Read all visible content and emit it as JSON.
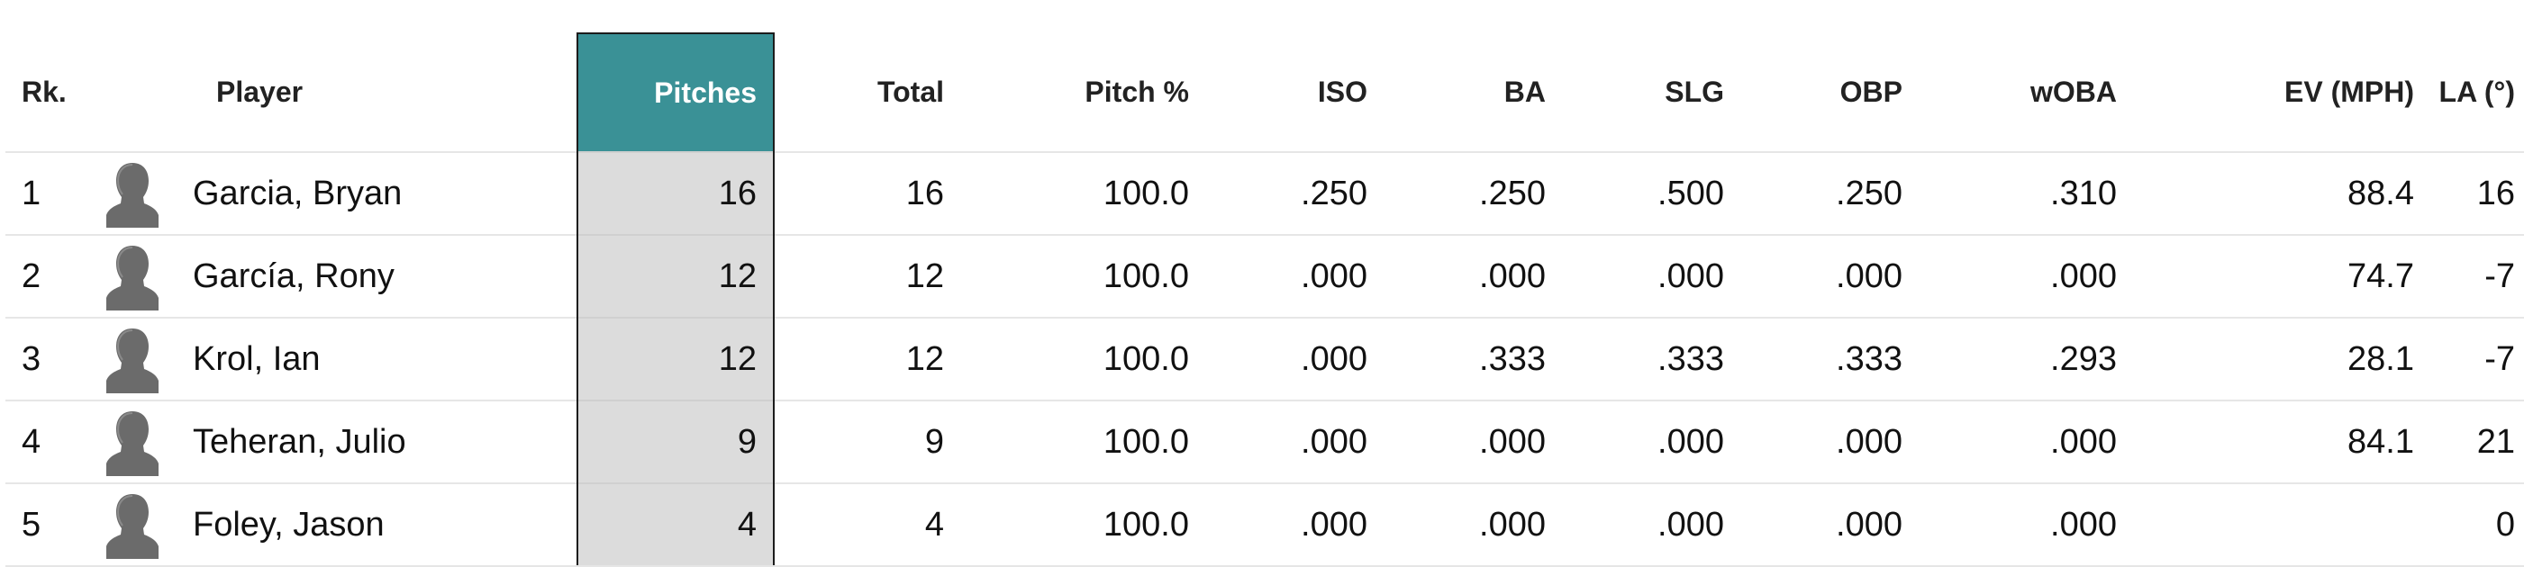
{
  "table": {
    "headers": {
      "rk": "Rk.",
      "player": "Player",
      "pitches": "Pitches",
      "total": "Total",
      "pitch_pct": "Pitch %",
      "iso": "ISO",
      "ba": "BA",
      "slg": "SLG",
      "obp": "OBP",
      "woba": "wOBA",
      "ev": "EV (MPH)",
      "la": "LA (°)"
    },
    "sorted_column": "Pitches",
    "accent_color": "#3a9196",
    "rows": [
      {
        "rk": "1",
        "player": "Garcia, Bryan",
        "pitches": "16",
        "total": "16",
        "pitch_pct": "100.0",
        "iso": ".250",
        "ba": ".250",
        "slg": ".500",
        "obp": ".250",
        "woba": ".310",
        "ev": "88.4",
        "la": "16"
      },
      {
        "rk": "2",
        "player": "García, Rony",
        "pitches": "12",
        "total": "12",
        "pitch_pct": "100.0",
        "iso": ".000",
        "ba": ".000",
        "slg": ".000",
        "obp": ".000",
        "woba": ".000",
        "ev": "74.7",
        "la": "-7"
      },
      {
        "rk": "3",
        "player": "Krol, Ian",
        "pitches": "12",
        "total": "12",
        "pitch_pct": "100.0",
        "iso": ".000",
        "ba": ".333",
        "slg": ".333",
        "obp": ".333",
        "woba": ".293",
        "ev": "28.1",
        "la": "-7"
      },
      {
        "rk": "4",
        "player": "Teheran, Julio",
        "pitches": "9",
        "total": "9",
        "pitch_pct": "100.0",
        "iso": ".000",
        "ba": ".000",
        "slg": ".000",
        "obp": ".000",
        "woba": ".000",
        "ev": "84.1",
        "la": "21"
      },
      {
        "rk": "5",
        "player": "Foley, Jason",
        "pitches": "4",
        "total": "4",
        "pitch_pct": "100.0",
        "iso": ".000",
        "ba": ".000",
        "slg": ".000",
        "obp": ".000",
        "woba": ".000",
        "ev": "",
        "la": "0"
      }
    ]
  }
}
